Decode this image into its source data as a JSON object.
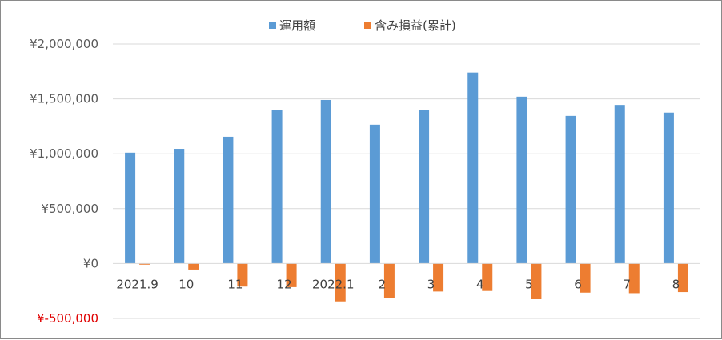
{
  "chart_data": {
    "type": "bar",
    "categories": [
      "2021.9",
      "10",
      "11",
      "12",
      "2022.1",
      "2",
      "3",
      "4",
      "5",
      "6",
      "7",
      "8"
    ],
    "series": [
      {
        "name": "運用額",
        "color": "#5b9bd5",
        "values": [
          1010000,
          1045000,
          1155000,
          1395000,
          1490000,
          1265000,
          1400000,
          1740000,
          1520000,
          1345000,
          1445000,
          1375000
        ]
      },
      {
        "name": "含み損益(累計)",
        "color": "#ed7d31",
        "values": [
          -10000,
          -55000,
          -210000,
          -215000,
          -345000,
          -315000,
          -255000,
          -250000,
          -325000,
          -265000,
          -270000,
          -260000
        ]
      }
    ],
    "ylim": [
      -500000,
      2000000
    ],
    "yticks": [
      {
        "value": 2000000,
        "label": "¥2,000,000"
      },
      {
        "value": 1500000,
        "label": "¥1,500,000"
      },
      {
        "value": 1000000,
        "label": "¥1,000,000"
      },
      {
        "value": 500000,
        "label": "¥500,000"
      },
      {
        "value": 0,
        "label": "¥0"
      },
      {
        "value": -500000,
        "label": "¥-500,000"
      }
    ],
    "negative_tick_color": "#e00000",
    "grid": true,
    "legend_position": "top-center"
  }
}
